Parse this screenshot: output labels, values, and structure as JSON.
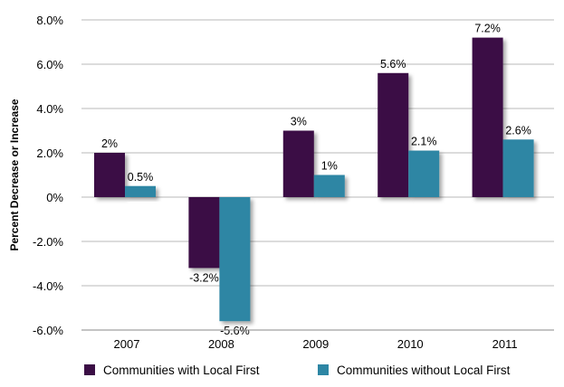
{
  "chart_data": {
    "type": "bar",
    "title": "",
    "xlabel": "",
    "ylabel": "Percent Decrease or Increase",
    "categories": [
      "2007",
      "2008",
      "2009",
      "2010",
      "2011"
    ],
    "series": [
      {
        "name": "Communities with Local First",
        "color": "#3b0e45",
        "values": [
          2,
          -3.2,
          3,
          5.6,
          7.2
        ],
        "labels": [
          "2%",
          "-3.2%",
          "3%",
          "5.6%",
          "7.2%"
        ]
      },
      {
        "name": "Communities without Local First",
        "color": "#2d86a4",
        "values": [
          0.5,
          -5.6,
          1,
          2.1,
          2.6
        ],
        "labels": [
          "0.5%",
          "-5.6%",
          "1%",
          "2.1%",
          "2.6%"
        ]
      }
    ],
    "ylim": [
      -6,
      8
    ],
    "yticks": [
      8,
      6,
      4,
      2,
      0,
      -2,
      -4,
      -6
    ],
    "ytick_labels": [
      "8.0%",
      "6.0%",
      "4.0%",
      "2.0%",
      "0%",
      "-2.0%",
      "-4.0%",
      "-6.0%"
    ],
    "grid": true,
    "legend_position": "bottom"
  }
}
